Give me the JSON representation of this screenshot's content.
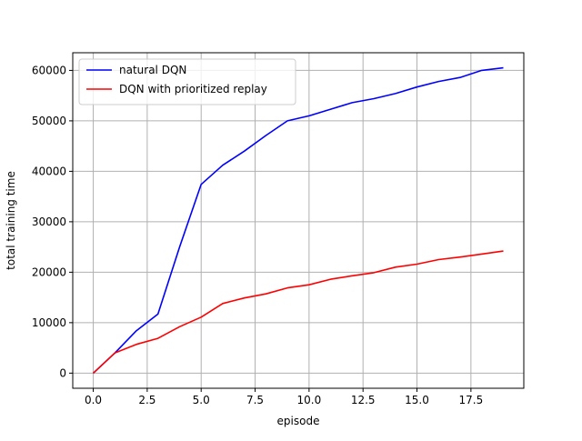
{
  "chart_data": {
    "type": "line",
    "title": "",
    "xlabel": "episode",
    "ylabel": "total training time",
    "xlim": [
      -0.95,
      19.95
    ],
    "ylim": [
      -3000,
      63500
    ],
    "grid": true,
    "legend_position": "top-left",
    "x_ticks": [
      0.0,
      2.5,
      5.0,
      7.5,
      10.0,
      12.5,
      15.0,
      17.5
    ],
    "x_tick_labels": [
      "0.0",
      "2.5",
      "5.0",
      "7.5",
      "10.0",
      "12.5",
      "15.0",
      "17.5"
    ],
    "y_ticks": [
      0,
      10000,
      20000,
      30000,
      40000,
      50000,
      60000
    ],
    "y_tick_labels": [
      "0",
      "10000",
      "20000",
      "30000",
      "40000",
      "50000",
      "60000"
    ],
    "x": [
      0,
      1,
      2,
      3,
      4,
      5,
      6,
      7,
      8,
      9,
      10,
      11,
      12,
      13,
      14,
      15,
      16,
      17,
      18,
      19
    ],
    "series": [
      {
        "name": "natural DQN",
        "color": "#0000ff",
        "values": [
          0,
          4000,
          8400,
          11700,
          25000,
          37400,
          41200,
          44000,
          47100,
          50000,
          51000,
          52300,
          53600,
          54400,
          55400,
          56700,
          57800,
          58600,
          60000,
          60500
        ]
      },
      {
        "name": "DQN with prioritized replay",
        "color": "#ff0000",
        "values": [
          0,
          4000,
          5700,
          6900,
          9200,
          11100,
          13800,
          14900,
          15700,
          16900,
          17500,
          18600,
          19300,
          19900,
          21000,
          21600,
          22500,
          23000,
          23600,
          24200
        ]
      }
    ]
  }
}
